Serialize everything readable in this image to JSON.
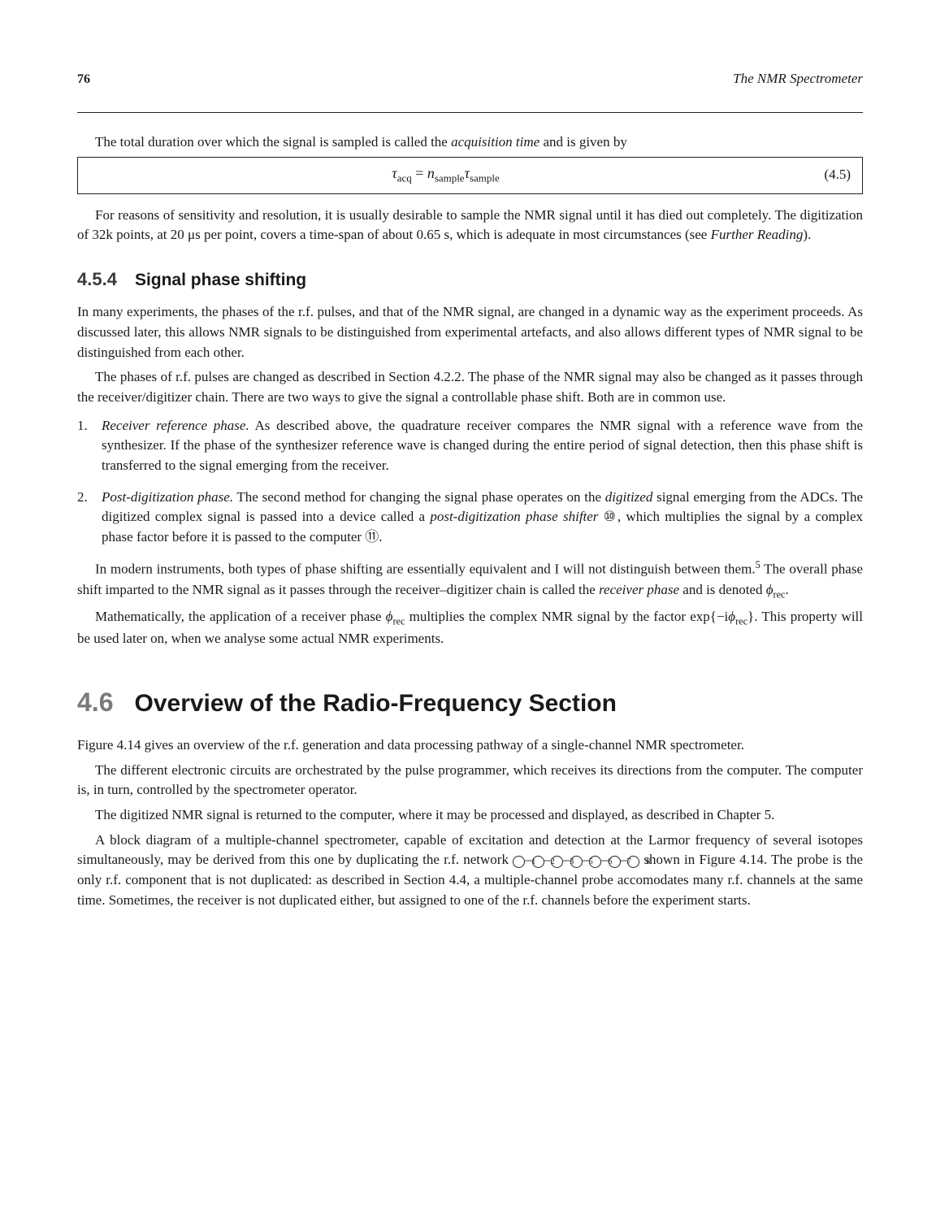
{
  "header": {
    "page_number": "76",
    "running_head": "The NMR Spectrometer"
  },
  "intro_para": "The total duration over which the signal is sampled is called the ",
  "intro_ital": "acquisition time",
  "intro_tail": " and is given by",
  "equation": {
    "lhs_var": "τ",
    "lhs_sub": "acq",
    "eq": " = ",
    "n_var": "n",
    "n_sub": "sample",
    "t_var": "τ",
    "t_sub": "sample",
    "number": "(4.5)"
  },
  "para_after_eq": "For reasons of sensitivity and resolution, it is usually desirable to sample the NMR signal until it has died out completely. The digitization of 32k points, at 20 μs per point, covers a time-span of about 0.65 s, which is adequate in most circumstances (see ",
  "para_after_eq_ital": "Further Reading",
  "para_after_eq_tail": ").",
  "sec_454": {
    "num": "4.5.4",
    "title": "Signal phase shifting"
  },
  "p454_1": "In many experiments, the phases of the r.f. pulses, and that of the NMR signal, are changed in a dynamic way as the experiment proceeds. As discussed later, this allows NMR signals to be distinguished from experimental artefacts, and also allows different types of NMR signal to be distinguished from each other.",
  "p454_2": "The phases of r.f. pulses are changed as described in Section 4.2.2. The phase of the NMR signal may also be changed as it passes through the receiver/digitizer chain. There are two ways to give the signal a controllable phase shift. Both are in common use.",
  "list454": [
    {
      "num": "1.",
      "lead_ital": "Receiver reference phase.",
      "body": " As described above, the quadrature receiver compares the NMR signal with a reference wave from the synthesizer. If the phase of the synthesizer reference wave is changed during the entire period of signal detection, then this phase shift is transferred to the signal emerging from the receiver."
    },
    {
      "num": "2.",
      "lead_ital": "Post-digitization phase.",
      "body_a": " The second method for changing the signal phase operates on the ",
      "body_ital": "digitized",
      "body_b": " signal emerging from the ADCs. The digitized complex signal is passed into a device called a ",
      "body_ital2": "post-digitization phase shifter",
      "body_c": " ⑩, which multiplies the signal by a complex phase factor before it is passed to the computer ⑪."
    }
  ],
  "p454_3a": "In modern instruments, both types of phase shifting are essentially equivalent and I will not distinguish between them.",
  "p454_3sup": "5",
  "p454_3b": " The overall phase shift imparted to the NMR signal as it passes through the receiver–digitizer chain is called the ",
  "p454_3ital": "receiver phase",
  "p454_3c": " and is denoted ",
  "p454_3phi": "ϕ",
  "p454_3sub": "rec",
  "p454_3d": ".",
  "p454_4a": "Mathematically, the application of a receiver phase ",
  "p454_4phi": "ϕ",
  "p454_4sub": "rec",
  "p454_4b": " multiplies the complex NMR signal by the factor exp{−i",
  "p454_4phi2": "ϕ",
  "p454_4sub2": "rec",
  "p454_4c": "}. This property will be used later on, when we analyse some actual NMR experiments.",
  "sec_46": {
    "num": "4.6",
    "title": "Overview of the Radio-Frequency Section"
  },
  "p46_1": "Figure 4.14 gives an overview of the r.f. generation and data processing pathway of a single-channel NMR spectrometer.",
  "p46_2": "The different electronic circuits are orchestrated by the pulse programmer, which receives its directions from the computer. The computer is, in turn, controlled by the spectrometer operator.",
  "p46_3": "The digitized NMR signal is returned to the computer, where it may be processed and displayed, as described in Chapter 5.",
  "p46_4a": "A block diagram of a multiple-channel spectrometer, capable of excitation and detection at the Larmor frequency of several isotopes simultaneously, may be derived from this one by duplicating the r.f. network ",
  "circ_seq": [
    "1",
    "2",
    "3",
    "5",
    "6",
    "7",
    "8"
  ],
  "p46_4b": " shown in Figure 4.14. The probe is the only r.f. component that is not duplicated: as described in Section 4.4, a multiple-channel probe accomodates many r.f. channels at the same time. Sometimes, the receiver is not duplicated either, but assigned to one of the r.f. channels before the experiment starts."
}
